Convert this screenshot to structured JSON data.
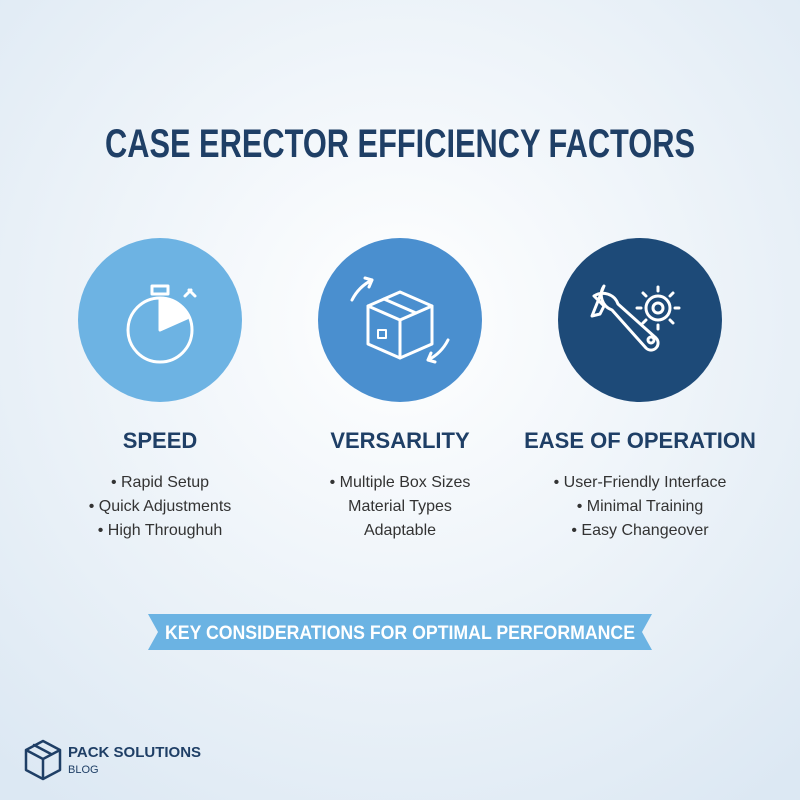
{
  "header": {
    "title": "CASE ERECTOR EFFICIENCY FACTORS"
  },
  "columns": [
    {
      "heading": "SPEED",
      "items": [
        "• Rapid Setup",
        "• Quick Adjustments",
        "• High Throughuh"
      ]
    },
    {
      "heading": "VERSARLITY",
      "items": [
        "• Multiple Box Sizes",
        "Material Types",
        "Adaptable"
      ]
    },
    {
      "heading": "EASE OF OPERATION",
      "items": [
        "• User-Friendly Interface",
        "• Minimal Training",
        "• Easy Changeover"
      ]
    }
  ],
  "banner": {
    "text": "KEY CONSIDERATIONS FOR OPTIMAL PERFORMANCE"
  },
  "logo": {
    "name": "PACK SOLUTIONS",
    "tagline": "BLOG"
  }
}
